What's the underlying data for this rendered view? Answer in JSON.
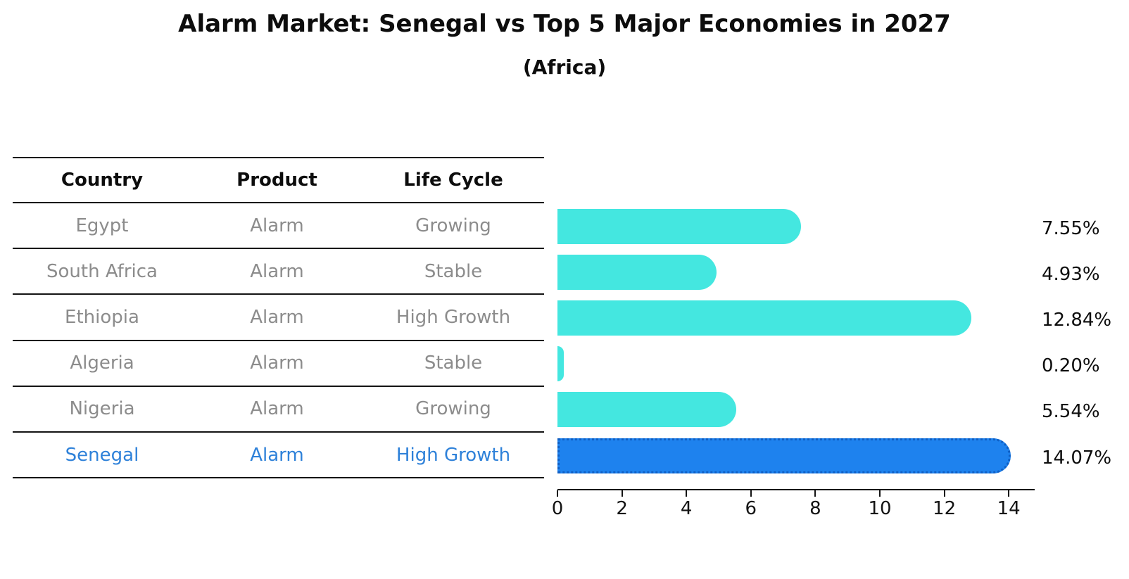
{
  "title": "Alarm Market: Senegal vs Top 5 Major Economies in 2027",
  "subtitle": "(Africa)",
  "table": {
    "headers": {
      "country": "Country",
      "product": "Product",
      "life_cycle": "Life Cycle"
    },
    "rows": [
      {
        "country": "Egypt",
        "product": "Alarm",
        "life_cycle": "Growing"
      },
      {
        "country": "South Africa",
        "product": "Alarm",
        "life_cycle": "Stable"
      },
      {
        "country": "Ethiopia",
        "product": "Alarm",
        "life_cycle": "High Growth"
      },
      {
        "country": "Algeria",
        "product": "Alarm",
        "life_cycle": "Stable"
      },
      {
        "country": "Nigeria",
        "product": "Alarm",
        "life_cycle": "Growing"
      },
      {
        "country": "Senegal",
        "product": "Alarm",
        "life_cycle": "High Growth"
      }
    ],
    "highlighted_row": "Senegal"
  },
  "chart_data": {
    "type": "bar",
    "orientation": "horizontal",
    "title": "Alarm Market: Senegal vs Top 5 Major Economies in 2027",
    "subtitle": "(Africa)",
    "categories": [
      "Egypt",
      "South Africa",
      "Ethiopia",
      "Algeria",
      "Nigeria",
      "Senegal"
    ],
    "values": [
      7.55,
      4.93,
      12.84,
      0.2,
      5.54,
      14.07
    ],
    "value_labels": [
      "7.55%",
      "4.93%",
      "12.84%",
      "0.20%",
      "5.54%",
      "14.07%"
    ],
    "x_ticks": [
      "0",
      "2",
      "4",
      "6",
      "8",
      "10",
      "12",
      "14"
    ],
    "xlim": [
      0,
      14.8
    ],
    "grid": false,
    "legend": false,
    "bar_color": "#44e7e0",
    "highlight_color": "#1e82ee",
    "highlight_border_color": "#0f5fc4",
    "highlight_index": 5
  },
  "colors": {
    "title_text": "#0d0d0d",
    "table_text": "#8c8c8c",
    "highlight_text": "#2e81d9",
    "axis": "#141414",
    "background": "#ffffff"
  }
}
